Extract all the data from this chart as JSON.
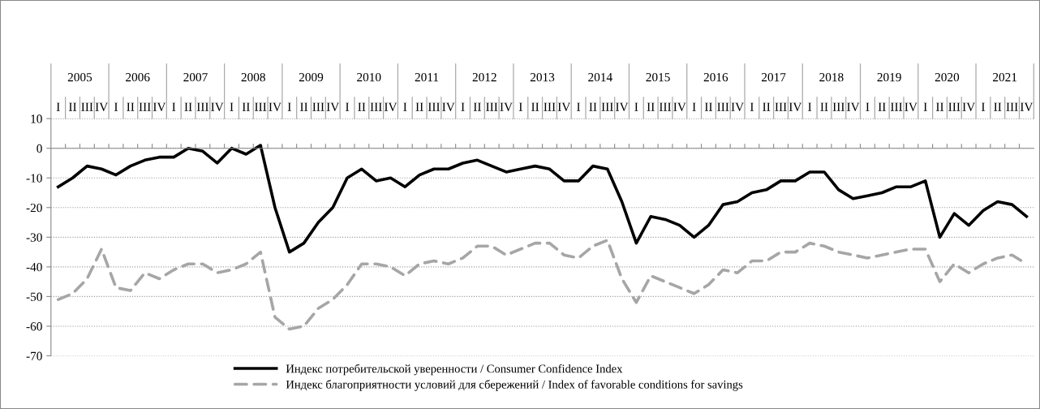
{
  "chart_data": {
    "type": "line",
    "categories": [
      "I",
      "II",
      "III",
      "IV",
      "I",
      "II",
      "III",
      "IV",
      "I",
      "II",
      "III",
      "IV",
      "I",
      "II",
      "III",
      "IV",
      "I",
      "II",
      "III",
      "IV",
      "I",
      "II",
      "III",
      "IV",
      "I",
      "II",
      "III",
      "IV",
      "I",
      "II",
      "III",
      "IV",
      "I",
      "II",
      "III",
      "IV",
      "I",
      "II",
      "III",
      "IV",
      "I",
      "II",
      "III",
      "IV",
      "I",
      "II",
      "III",
      "IV",
      "I",
      "II",
      "III",
      "IV",
      "I",
      "II",
      "III",
      "IV",
      "I",
      "II",
      "III",
      "IV",
      "I",
      "II",
      "III",
      "IV",
      "I",
      "II",
      "III",
      "IV"
    ],
    "annotations": [
      "2005",
      "2006",
      "2007",
      "2008",
      "2009",
      "2010",
      "2011",
      "2012",
      "2013",
      "2014",
      "2015",
      "2016",
      "2017",
      "2018",
      "2019",
      "2020",
      "2021"
    ],
    "series": [
      {
        "name": "Индекс потребительской уверенности / Consumer Confidence Index",
        "color": "#000000",
        "line_style": "solid",
        "values": [
          -13,
          -10,
          -6,
          -7,
          -9,
          -6,
          -4,
          -3,
          -3,
          0,
          -1,
          -5,
          0,
          -2,
          1,
          -20,
          -35,
          -32,
          -25,
          -20,
          -10,
          -7,
          -11,
          -10,
          -13,
          -9,
          -7,
          -7,
          -5,
          -4,
          -6,
          -8,
          -7,
          -6,
          -7,
          -11,
          -11,
          -6,
          -7,
          -18,
          -32,
          -23,
          -24,
          -26,
          -30,
          -26,
          -19,
          -18,
          -15,
          -14,
          -11,
          -11,
          -8,
          -8,
          -14,
          -17,
          -16,
          -15,
          -13,
          -13,
          -11,
          -30,
          -22,
          -26,
          -21,
          -18,
          -19,
          -23
        ]
      },
      {
        "name": "Индекс благоприятности условий для сбережений / Index of favorable conditions for savings",
        "color": "#a6a6a6",
        "line_style": "dashed",
        "values": [
          -51,
          -49,
          -44,
          -34,
          -47,
          -48,
          -42,
          -44,
          -41,
          -39,
          -39,
          -42,
          -41,
          -39,
          -35,
          -57,
          -61,
          -60,
          -54,
          -51,
          -46,
          -39,
          -39,
          -40,
          -43,
          -39,
          -38,
          -39,
          -37,
          -33,
          -33,
          -36,
          -34,
          -32,
          -32,
          -36,
          -37,
          -33,
          -31,
          -44,
          -52,
          -43,
          -45,
          -47,
          -49,
          -46,
          -41,
          -42,
          -38,
          -38,
          -35,
          -35,
          -32,
          -33,
          -35,
          -36,
          -37,
          -36,
          -35,
          -34,
          -34,
          -45,
          -39,
          -42,
          -39,
          -37,
          -36,
          -39
        ]
      }
    ],
    "ylim": [
      -70,
      10
    ],
    "yticks": [
      -70,
      -60,
      -50,
      -40,
      -30,
      -20,
      -10,
      0,
      10
    ],
    "grid": "y",
    "legend": "bottom"
  }
}
